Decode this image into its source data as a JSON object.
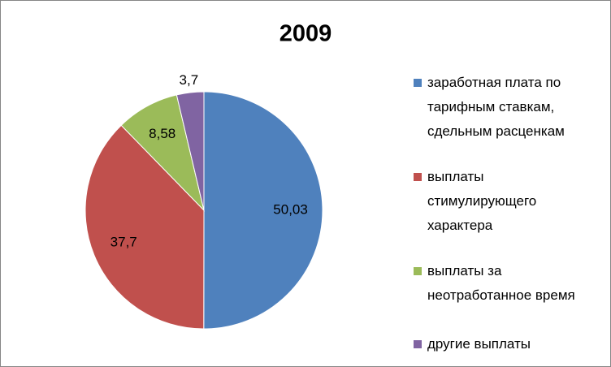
{
  "chart_data": {
    "type": "pie",
    "title": "2009",
    "categories": [
      "заработная плата по тарифным ставкам, сдельным расценкам",
      "выплаты стимулирующего характера",
      "выплаты за неотработанное время",
      "другие выплаты"
    ],
    "values": [
      50.03,
      37.7,
      8.58,
      3.7
    ],
    "value_labels": [
      "50,03",
      "37,7",
      "8,58",
      "3,7"
    ],
    "colors": [
      "#4f81bd",
      "#c0504d",
      "#9bbb59",
      "#8064a2"
    ],
    "legend": "right"
  }
}
